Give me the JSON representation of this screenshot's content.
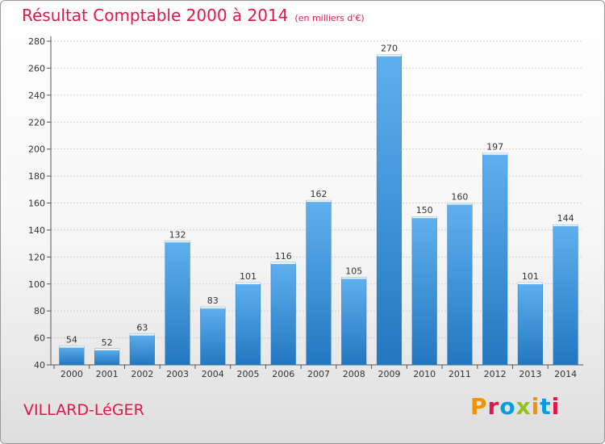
{
  "chart_data": {
    "type": "bar",
    "title": "Résultat Comptable 2000 à 2014",
    "subtitle": "(en milliers d'€)",
    "categories": [
      "2000",
      "2001",
      "2002",
      "2003",
      "2004",
      "2005",
      "2006",
      "2007",
      "2008",
      "2009",
      "2010",
      "2011",
      "2012",
      "2013",
      "2014"
    ],
    "values": [
      54,
      52,
      63,
      132,
      83,
      101,
      116,
      162,
      105,
      270,
      150,
      160,
      197,
      101,
      144
    ],
    "ylim": [
      40,
      280
    ],
    "yticks": [
      40,
      60,
      80,
      100,
      120,
      140,
      160,
      180,
      200,
      220,
      240,
      260,
      280
    ],
    "grid": true,
    "bar_color": "#3a8fd6"
  },
  "footer": {
    "commune": "VILLARD-LéGER",
    "logo": "Proxiti"
  },
  "colors": {
    "title": "#e0184a",
    "logo_letters": [
      "#f39200",
      "#e0184a",
      "#009ee0",
      "#95c11f",
      "#f39200",
      "#009ee0",
      "#e0184a"
    ]
  }
}
